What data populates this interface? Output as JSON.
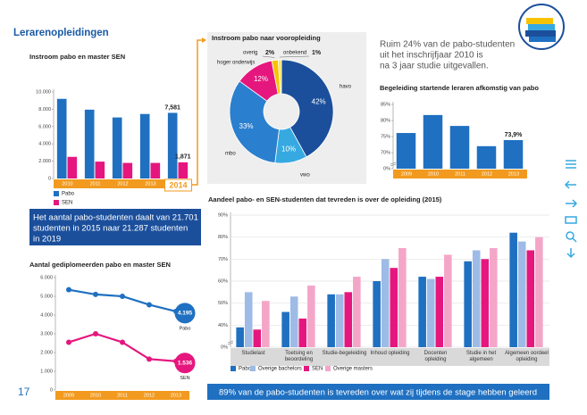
{
  "page": {
    "section_title": "Lerarenopleidingen",
    "page_number": "17",
    "callout": [
      "Het aantal pabo-studenten daalt van 21.701",
      "studenten in 2015 naar 21.287 studenten",
      "in 2019"
    ],
    "note": [
      "Ruim 24% van de pabo-studenten",
      "uit het inschrijfjaar 2010 is",
      "na 3 jaar studie uitgevallen."
    ],
    "footer": "89% van de pabo-studenten is tevreden over wat zij tijdens de stage hebben geleerd"
  },
  "chart_data": [
    {
      "type": "bar",
      "title": "Instroom pabo en master SEN",
      "categories": [
        "2010",
        "2011",
        "2012",
        "2013",
        "2014"
      ],
      "series": [
        {
          "name": "Pabo",
          "color": "#1f70c1",
          "values": [
            9200,
            7950,
            7050,
            7450,
            7581
          ],
          "value_labels": [
            null,
            null,
            null,
            null,
            "7,581"
          ]
        },
        {
          "name": "SEN",
          "color": "#e5177e",
          "values": [
            2500,
            1950,
            1800,
            1800,
            1871
          ],
          "value_labels": [
            null,
            null,
            null,
            null,
            "1,871"
          ]
        }
      ],
      "ylim": [
        0,
        10000
      ],
      "yticks": [
        0,
        {
          "value": 2000,
          "label": "2.000"
        },
        {
          "value": 4000,
          "label": "4.000"
        },
        {
          "value": 6000,
          "label": "6.000"
        },
        {
          "value": 8000,
          "label": "8.000"
        },
        {
          "value": 10000,
          "label": "10.000"
        }
      ],
      "grid": false
    },
    {
      "type": "line",
      "title": "Aantal gediplomeerden pabo en master SEN",
      "categories": [
        "2009",
        "2010",
        "2011",
        "2012",
        "2013"
      ],
      "series": [
        {
          "name": "Pabo",
          "color": "#1f70c1",
          "values": [
            5350,
            5100,
            5000,
            4550,
            4195
          ],
          "value_labels": [
            null,
            null,
            null,
            null,
            "4.195"
          ]
        },
        {
          "name": "SEN",
          "color": "#e5177e",
          "values": [
            2550,
            3000,
            2550,
            1650,
            1536
          ],
          "value_labels": [
            null,
            null,
            null,
            null,
            "1.536"
          ]
        }
      ],
      "ylim": [
        0,
        6000
      ],
      "yticks": [
        0,
        {
          "value": 1000,
          "label": "1.000"
        },
        {
          "value": 2000,
          "label": "2.000"
        },
        {
          "value": 3000,
          "label": "3.000"
        },
        {
          "value": 4000,
          "label": "4.000"
        },
        {
          "value": 5000,
          "label": "5.000"
        },
        {
          "value": 6000,
          "label": "6.000"
        }
      ],
      "grid": false
    },
    {
      "type": "pie",
      "title": "Instroom pabo naar vooropleiding",
      "categories": [
        "havo",
        "vwo",
        "mbo",
        "hoger onderwijs",
        "overig",
        "onbekend"
      ],
      "values": [
        42,
        10,
        33,
        12,
        2,
        1
      ],
      "value_labels": [
        "42%",
        "10%",
        "33%",
        "12%",
        "2%",
        "1%"
      ],
      "colors": [
        "#1b4f9c",
        "#36a9e1",
        "#2a7fcf",
        "#e5177e",
        "#f7c300",
        "#ffe45c"
      ]
    },
    {
      "type": "bar",
      "title": "Begeleiding startende leraren afkomstig van pabo",
      "categories": [
        "2009",
        "2010",
        "2011",
        "2012",
        "2013"
      ],
      "series": [
        {
          "name": "Begeleiding",
          "color": "#1f70c1",
          "values": [
            76.1,
            81.7,
            78.3,
            72,
            73.9
          ],
          "value_labels": [
            null,
            null,
            null,
            null,
            "73,9%"
          ]
        }
      ],
      "ylim": [
        65,
        85
      ],
      "yticks": [
        {
          "value": 0,
          "label": "0%"
        },
        {
          "value": 70,
          "label": "70%"
        },
        {
          "value": 75,
          "label": "75%"
        },
        {
          "value": 80,
          "label": "80%"
        },
        {
          "value": 85,
          "label": "85%"
        }
      ],
      "axis_break": true,
      "grid": false
    },
    {
      "type": "bar",
      "title": "Aandeel pabo- en SEN-studenten dat tevreden is over de opleiding (2015)",
      "categories": [
        "Studielast",
        "Toetsing en beoordeling",
        "Studie-begeleiding",
        "Inhoud opleiding",
        "Docenten opleiding",
        "Studie in het algemeen",
        "Algemeen oordeel opleiding"
      ],
      "series": [
        {
          "name": "Pabo",
          "color": "#1f70c1",
          "values": [
            39,
            46,
            54,
            60,
            62,
            69,
            82
          ]
        },
        {
          "name": "Overige bachelors",
          "color": "#9dbbe6",
          "values": [
            55,
            53,
            54,
            70,
            61,
            74,
            78
          ]
        },
        {
          "name": "SEN",
          "color": "#e5177e",
          "values": [
            38,
            43,
            55,
            66,
            62,
            70,
            74
          ]
        },
        {
          "name": "Overige masters",
          "color": "#f4a6c8",
          "values": [
            51,
            58,
            62,
            75,
            72,
            75,
            80
          ]
        }
      ],
      "ylim": [
        30,
        90
      ],
      "yticks": [
        {
          "value": 0,
          "label": "0%"
        },
        {
          "value": 40,
          "label": "40%"
        },
        {
          "value": 50,
          "label": "50%"
        },
        {
          "value": 60,
          "label": "60%"
        },
        {
          "value": 70,
          "label": "70%"
        },
        {
          "value": 80,
          "label": "80%"
        },
        {
          "value": 90,
          "label": "90%"
        }
      ],
      "axis_break": true,
      "grid": true
    }
  ]
}
